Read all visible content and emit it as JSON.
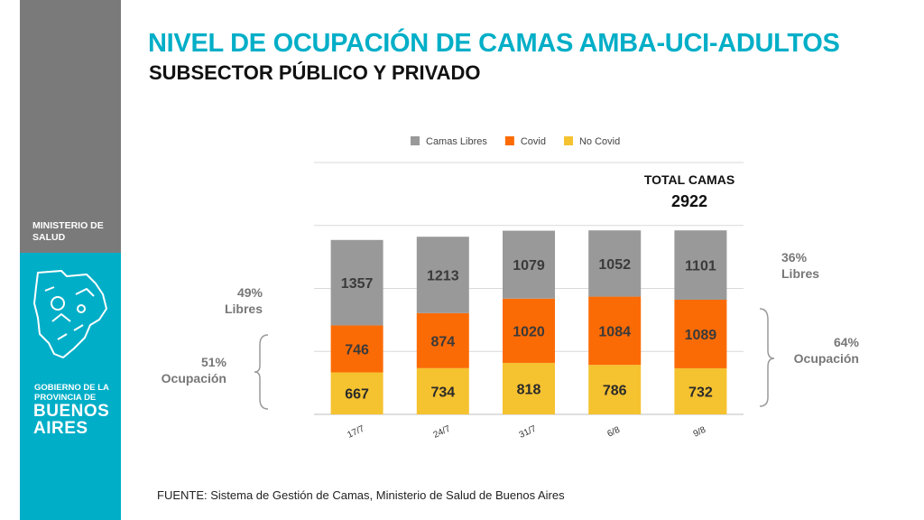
{
  "header": {
    "title": "NIVEL DE OCUPACIÓN DE CAMAS AMBA-UCI-ADULTOS",
    "subtitle": "SUBSECTOR PÚBLICO Y PRIVADO"
  },
  "sidebar": {
    "ministry_line1": "MINISTERIO DE",
    "ministry_line2": "SALUD",
    "gov_line1": "GOBIERNO DE LA",
    "gov_line2": "PROVINCIA DE",
    "province_line1": "BUENOS",
    "province_line2": "AIRES",
    "colors": {
      "gray": "#7a7a7a",
      "teal": "#00aec7"
    }
  },
  "footer": {
    "source": "FUENTE: Sistema de Gestión de Camas, Ministerio de Salud de Buenos Aires"
  },
  "chart_data": {
    "type": "bar",
    "stacked": true,
    "categories": [
      "17/7",
      "24/7",
      "31/7",
      "6/8",
      "9/8"
    ],
    "series": [
      {
        "name": "No Covid",
        "color": "#f5c230",
        "values": [
          667,
          734,
          818,
          786,
          732
        ]
      },
      {
        "name": "Covid",
        "color": "#fb6b05",
        "values": [
          746,
          874,
          1020,
          1084,
          1089
        ]
      },
      {
        "name": "Camas Libres",
        "color": "#999999",
        "values": [
          1357,
          1213,
          1079,
          1052,
          1101
        ]
      }
    ],
    "legend_order": [
      "Camas Libres",
      "Covid",
      "No Covid"
    ],
    "legend_position": "top",
    "ylim": [
      0,
      4000
    ],
    "grid": true,
    "total": {
      "label": "TOTAL CAMAS",
      "value": "2922"
    },
    "annotations": {
      "left_free_pct": "49%",
      "left_free_label": "Libres",
      "left_occ_pct": "51%",
      "left_occ_label": "Ocupación",
      "right_free_pct": "36%",
      "right_free_label": "Libres",
      "right_occ_pct": "64%",
      "right_occ_label": "Ocupación"
    }
  }
}
